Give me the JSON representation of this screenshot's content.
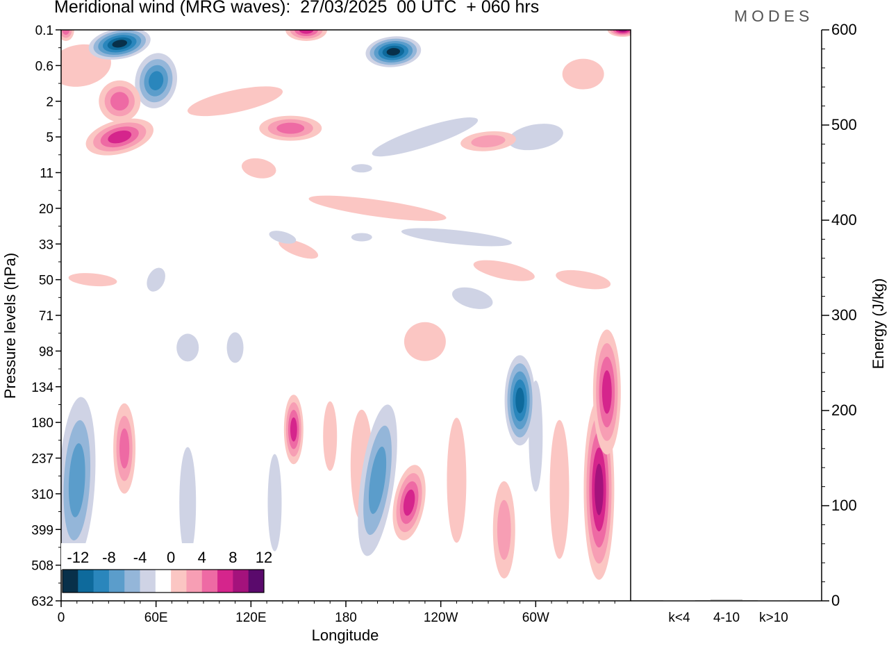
{
  "title": "Meridional wind (MRG waves):  27/03/2025  00 UTC  + 060 hrs",
  "logo": "MODES",
  "chart_data": [
    {
      "type": "heatmap",
      "title": "Meridional wind (MRG waves):  27/03/2025  00 UTC  + 060 hrs",
      "xlabel": "Longitude",
      "ylabel": "Pressure levels (hPa)",
      "x_ticks": [
        "0",
        "60E",
        "120E",
        "180",
        "120W",
        "60W"
      ],
      "x_tick_positions_deg": [
        0,
        60,
        120,
        180,
        240,
        300
      ],
      "xlim": [
        0,
        360
      ],
      "y_ticks": [
        "0.1",
        "0.6",
        "2",
        "5",
        "11",
        "20",
        "33",
        "50",
        "71",
        "98",
        "134",
        "180",
        "237",
        "310",
        "399",
        "508",
        "632"
      ],
      "colorbar": {
        "labels": [
          "-12",
          "-8",
          "-4",
          "0",
          "4",
          "8",
          "12"
        ],
        "levels": [
          -14,
          -12,
          -10,
          -8,
          -6,
          -4,
          -2,
          2,
          4,
          6,
          8,
          10,
          12,
          14
        ],
        "colors": [
          "#08304a",
          "#0e6a9c",
          "#2a86bc",
          "#5b9dcb",
          "#94b6d9",
          "#cfd3e5",
          "#ffffff",
          "#fbc6c3",
          "#f79eb4",
          "#ee6aa4",
          "#d5258c",
          "#a4127c",
          "#5a0a6c"
        ]
      },
      "features": [
        {
          "lon": 37,
          "lev": 0.2,
          "v": -13
        },
        {
          "lon": 60,
          "lev": 1.0,
          "v": -8
        },
        {
          "lon": 210,
          "lev": 0.3,
          "v": -12
        },
        {
          "lon": 155,
          "lev": 0.1,
          "v": 8
        },
        {
          "lon": 355,
          "lev": 0.1,
          "v": 10
        },
        {
          "lon": 3,
          "lev": 0.1,
          "v": 7
        },
        {
          "lon": 37,
          "lev": 2.0,
          "v": 6
        },
        {
          "lon": 37,
          "lev": 5.0,
          "v": 8
        },
        {
          "lon": 145,
          "lev": 4.0,
          "v": 6
        },
        {
          "lon": 270,
          "lev": 5.5,
          "v": 5
        },
        {
          "lon": 290,
          "lev": 150,
          "v": -10
        },
        {
          "lon": 10,
          "lev": 280,
          "v": -7
        },
        {
          "lon": 200,
          "lev": 280,
          "v": -6
        },
        {
          "lon": 40,
          "lev": 220,
          "v": 7
        },
        {
          "lon": 147,
          "lev": 190,
          "v": 8
        },
        {
          "lon": 220,
          "lev": 330,
          "v": 9
        },
        {
          "lon": 340,
          "lev": 300,
          "v": 10
        },
        {
          "lon": 345,
          "lev": 140,
          "v": 8
        },
        {
          "lon": 280,
          "lev": 400,
          "v": 5
        }
      ]
    },
    {
      "type": "bar",
      "categories": [
        "k<4",
        "4-10",
        "k>10"
      ],
      "values": [
        0,
        1,
        0
      ],
      "ylabel": "Energy (J/kg)",
      "ylim": [
        0,
        600
      ],
      "y_ticks": [
        "0",
        "100",
        "200",
        "300",
        "400",
        "500",
        "600"
      ]
    }
  ]
}
